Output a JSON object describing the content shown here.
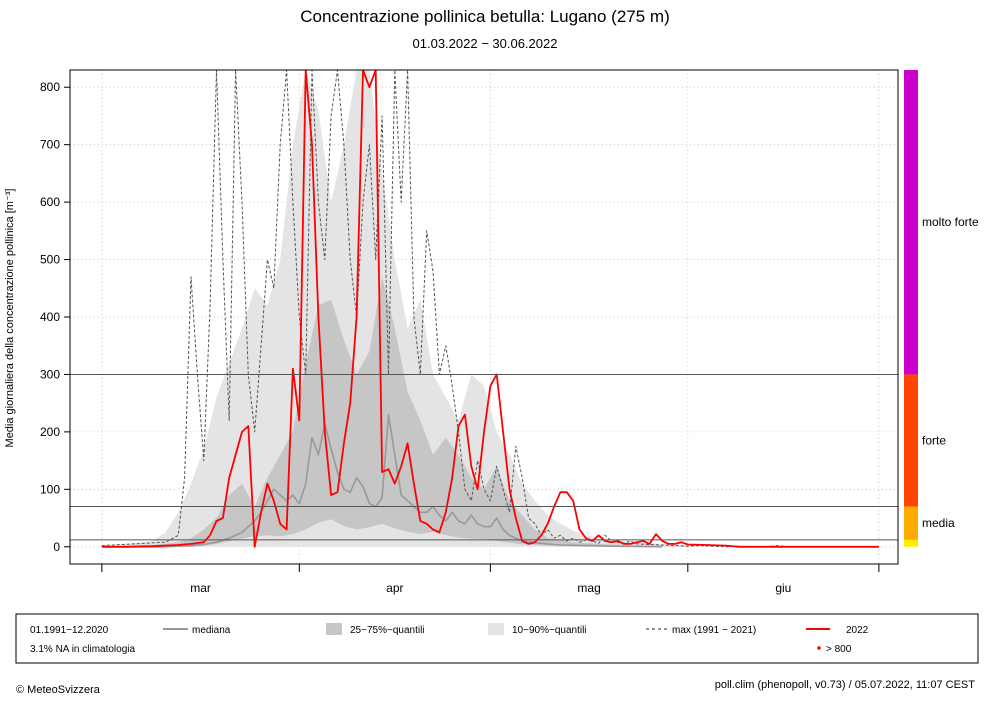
{
  "chart_data": {
    "type": "line",
    "title": "Concentrazione pollinica betulla: Lugano (275 m)",
    "subtitle": "01.03.2022 − 30.06.2022",
    "ylabel": "Media giornaliera della concentrazione pollinica [m⁻³]",
    "ylim": [
      -30,
      830
    ],
    "yticks": [
      0,
      100,
      200,
      300,
      400,
      500,
      600,
      700,
      800
    ],
    "xlim": [
      -5,
      125
    ],
    "month_ticks": [
      0,
      31,
      61,
      92,
      122
    ],
    "month_labels": [
      {
        "label": "mar",
        "x": 15.5
      },
      {
        "label": "apr",
        "x": 46
      },
      {
        "label": "mag",
        "x": 76.5
      },
      {
        "label": "giu",
        "x": 107
      }
    ],
    "thresholds": [
      12,
      70,
      300
    ],
    "grid": true,
    "levels": [
      {
        "name": "molto forte",
        "from": 300,
        "to": 830,
        "color": "#cc00cc"
      },
      {
        "name": "forte",
        "from": 70,
        "to": 300,
        "color": "#ff4400"
      },
      {
        "name": "media",
        "from": 12,
        "to": 70,
        "color": "#ffaa00"
      },
      {
        "name": "",
        "from": 0,
        "to": 12,
        "color": "#ffee00"
      }
    ],
    "series": [
      {
        "name": "10−90%−quantili",
        "type": "band",
        "color": "#e4e4e4",
        "x": [
          0,
          4,
          8,
          10,
          12,
          14,
          16,
          18,
          20,
          22,
          24,
          26,
          28,
          30,
          32,
          34,
          36,
          38,
          40,
          42,
          44,
          46,
          48,
          50,
          52,
          54,
          56,
          58,
          60,
          62,
          64,
          66,
          68,
          70,
          72,
          74,
          76,
          78,
          80,
          84,
          88,
          92
        ],
        "low": [
          0,
          0,
          0,
          0,
          0,
          0,
          0,
          0,
          0,
          0,
          0,
          0,
          0,
          0,
          0,
          0,
          0,
          0,
          0,
          0,
          0,
          0,
          0,
          0,
          0,
          0,
          0,
          0,
          0,
          0,
          0,
          0,
          0,
          0,
          0,
          0,
          0,
          0,
          0,
          0,
          0,
          0
        ],
        "high": [
          3,
          5,
          10,
          25,
          60,
          110,
          170,
          260,
          320,
          380,
          450,
          420,
          500,
          700,
          830,
          760,
          600,
          700,
          830,
          830,
          650,
          500,
          380,
          430,
          300,
          260,
          220,
          300,
          280,
          200,
          160,
          110,
          80,
          55,
          40,
          28,
          20,
          14,
          10,
          7,
          5,
          3
        ]
      },
      {
        "name": "25−75%−quantili",
        "type": "band",
        "color": "#c6c6c6",
        "x": [
          0,
          8,
          12,
          14,
          16,
          18,
          20,
          22,
          24,
          26,
          28,
          30,
          32,
          34,
          36,
          38,
          40,
          42,
          44,
          46,
          48,
          50,
          52,
          54,
          56,
          58,
          60,
          62,
          64,
          66,
          68,
          70,
          74,
          80,
          88
        ],
        "low": [
          0,
          0,
          0,
          0,
          2,
          5,
          10,
          14,
          18,
          20,
          18,
          22,
          30,
          42,
          48,
          36,
          30,
          34,
          40,
          32,
          26,
          22,
          26,
          20,
          16,
          14,
          14,
          10,
          7,
          4,
          3,
          2,
          1,
          0,
          0
        ],
        "high": [
          1,
          3,
          8,
          15,
          30,
          50,
          90,
          110,
          70,
          120,
          160,
          200,
          320,
          420,
          430,
          360,
          300,
          340,
          470,
          380,
          270,
          220,
          160,
          190,
          160,
          120,
          100,
          140,
          80,
          55,
          30,
          15,
          8,
          4,
          2
        ]
      },
      {
        "name": "mediana",
        "type": "line",
        "color": "#999999",
        "x": [
          0,
          10,
          14,
          16,
          18,
          20,
          22,
          24,
          25,
          27,
          29,
          30,
          31,
          32,
          33,
          34,
          35,
          36,
          37,
          38,
          39,
          40,
          41,
          42,
          43,
          44,
          45,
          46,
          47,
          48,
          49,
          50,
          51,
          52,
          53,
          54,
          55,
          56,
          57,
          58,
          59,
          60,
          61,
          62,
          63,
          64,
          66,
          68,
          70,
          72,
          76,
          80,
          88
        ],
        "values": [
          0,
          0,
          2,
          4,
          8,
          15,
          25,
          45,
          60,
          100,
          80,
          90,
          75,
          110,
          190,
          160,
          215,
          170,
          130,
          100,
          95,
          120,
          105,
          75,
          70,
          85,
          230,
          160,
          90,
          80,
          70,
          60,
          60,
          70,
          55,
          45,
          60,
          45,
          40,
          55,
          40,
          35,
          35,
          50,
          30,
          20,
          10,
          7,
          5,
          3,
          2,
          1,
          0
        ]
      },
      {
        "name": "max (1991 − 2021)",
        "type": "line",
        "color": "#555555",
        "dashed": true,
        "x": [
          0,
          5,
          10,
          12,
          13,
          14,
          15,
          16,
          17,
          18,
          19,
          20,
          21,
          22,
          23,
          24,
          25,
          26,
          27,
          28,
          29,
          30,
          31,
          32,
          33,
          34,
          35,
          36,
          37,
          38,
          39,
          40,
          41,
          42,
          43,
          44,
          45,
          46,
          47,
          48,
          49,
          50,
          51,
          52,
          53,
          54,
          55,
          56,
          57,
          58,
          59,
          60,
          61,
          62,
          63,
          64,
          65,
          66,
          67,
          68,
          69,
          70,
          71,
          72,
          73,
          74,
          75,
          76,
          77,
          78,
          79,
          80,
          81,
          82,
          83,
          84,
          86,
          88,
          90,
          92,
          94,
          96,
          98,
          100,
          102,
          104,
          106,
          108,
          110,
          112,
          115,
          118,
          122
        ],
        "values": [
          2,
          5,
          8,
          20,
          120,
          470,
          300,
          150,
          420,
          830,
          500,
          220,
          830,
          600,
          300,
          200,
          350,
          500,
          450,
          700,
          830,
          600,
          400,
          300,
          830,
          600,
          500,
          750,
          830,
          700,
          500,
          400,
          600,
          700,
          500,
          750,
          300,
          830,
          600,
          830,
          400,
          300,
          550,
          480,
          300,
          350,
          280,
          200,
          100,
          80,
          150,
          100,
          80,
          140,
          100,
          60,
          175,
          120,
          50,
          40,
          20,
          30,
          15,
          20,
          10,
          15,
          8,
          12,
          10,
          6,
          20,
          10,
          8,
          6,
          10,
          5,
          4,
          3,
          2,
          1,
          2,
          1,
          0,
          1,
          0,
          0,
          2,
          0,
          0,
          0,
          0,
          0,
          0
        ]
      },
      {
        "name": "2022",
        "type": "line",
        "color": "#ff0000",
        "x": [
          0,
          4,
          8,
          12,
          14,
          16,
          17,
          18,
          19,
          20,
          21,
          22,
          23,
          24,
          25,
          26,
          27,
          28,
          29,
          30,
          31,
          32,
          33,
          34,
          35,
          36,
          37,
          38,
          39,
          40,
          41,
          42,
          43,
          44,
          45,
          46,
          47,
          48,
          49,
          50,
          51,
          52,
          53,
          54,
          55,
          56,
          57,
          58,
          59,
          60,
          61,
          62,
          63,
          64,
          65,
          66,
          67,
          68,
          69,
          70,
          71,
          72,
          73,
          74,
          75,
          76,
          77,
          78,
          79,
          80,
          81,
          82,
          83,
          84,
          85,
          86,
          87,
          88,
          89,
          90,
          91,
          92,
          95,
          98,
          100,
          102,
          104,
          110,
          112,
          116,
          120,
          122
        ],
        "values": [
          0,
          0,
          1,
          3,
          5,
          8,
          20,
          45,
          50,
          120,
          160,
          200,
          210,
          0,
          60,
          110,
          80,
          40,
          30,
          310,
          220,
          830,
          700,
          400,
          200,
          90,
          95,
          180,
          250,
          400,
          830,
          800,
          830,
          130,
          135,
          110,
          140,
          180,
          110,
          45,
          40,
          30,
          25,
          60,
          120,
          210,
          230,
          140,
          100,
          200,
          280,
          300,
          200,
          100,
          50,
          10,
          5,
          8,
          20,
          40,
          70,
          95,
          95,
          80,
          30,
          15,
          10,
          20,
          10,
          8,
          10,
          5,
          5,
          8,
          10,
          5,
          22,
          10,
          5,
          5,
          8,
          4,
          3,
          2,
          0,
          0,
          0,
          0,
          0,
          0,
          0,
          0
        ]
      }
    ],
    "legend": {
      "period": "01.1991−12.2020",
      "na_note": "3.1% NA in climatologia",
      "median_label": "mediana",
      "q25_75_label": "25−75%−quantili",
      "q10_90_label": "10−90%−quantili",
      "max_label": "max (1991 − 2021)",
      "year_label": "2022",
      "over_label": ">  800",
      "placement": "bottom"
    }
  },
  "footer": {
    "copyright": "© MeteoSvizzera",
    "version": "poll.clim (phenopoll, v0.73) / 05.07.2022, 11:07 CEST"
  }
}
